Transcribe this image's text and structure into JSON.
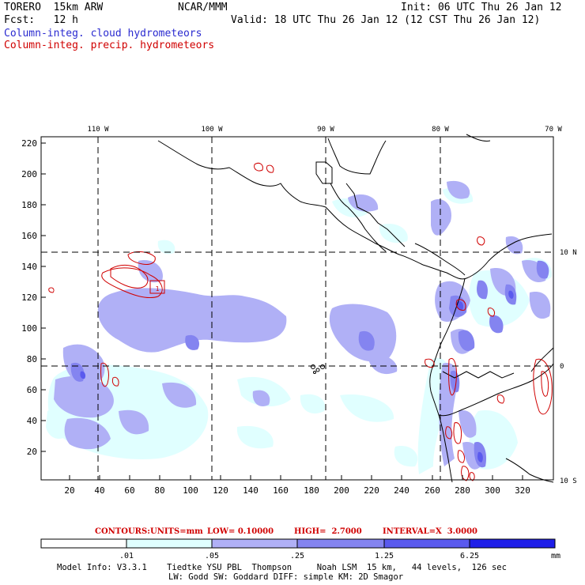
{
  "header": {
    "model": "TORERO  15km ARW",
    "org": "NCAR/MMM",
    "init": "Init: 06 UTC Thu 26 Jan 12",
    "fcst": "Fcst:   12 h",
    "valid": "Valid: 18 UTC Thu 26 Jan 12 (12 CST Thu 26 Jan 12)",
    "field1": "Column-integ. cloud hydrometeors",
    "field2": "Column-integ. precip. hydrometeors"
  },
  "colors": {
    "cloud_text": "#2a2ad0",
    "precip_text": "#d00000",
    "c1": "#e0ffff",
    "c2": "#b0b0f6",
    "c3": "#8484f0",
    "c4": "#5a5aee",
    "c5": "#1e1ee8",
    "contour": "#d00000"
  },
  "map": {
    "top_lon_labels": [
      "110 W",
      "100 W",
      "90 W",
      "80 W",
      "70 W"
    ],
    "right_lat_labels": [
      "10 N",
      "0",
      "10 S"
    ],
    "left_y_ticks": [
      "220",
      "200",
      "180",
      "160",
      "140",
      "120",
      "100",
      "80",
      "60",
      "40",
      "20"
    ],
    "bottom_x_ticks": [
      "20",
      "40",
      "60",
      "80",
      "100",
      "120",
      "140",
      "160",
      "180",
      "200",
      "220",
      "240",
      "260",
      "280",
      "300",
      "320"
    ],
    "contour_label": "1"
  },
  "contours": {
    "label_prefix": "CONTOURS:",
    "units": "UNITS=mm",
    "low": "LOW= 0.10000",
    "high": "HIGH=  2.7000",
    "interval": "INTERVAL=X  3.0000"
  },
  "colorbar": {
    "labels": [
      ".01",
      ".05",
      ".25",
      "1.25",
      "6.25"
    ],
    "unit": "mm"
  },
  "footer": {
    "line1": "Model Info: V3.3.1    Tiedtke YSU PBL  Thompson     Noah LSM  15 km,   44 levels,  126 sec",
    "line2": "LW: Godd SW: Goddard DIFF: simple KM: 2D Smagor"
  }
}
